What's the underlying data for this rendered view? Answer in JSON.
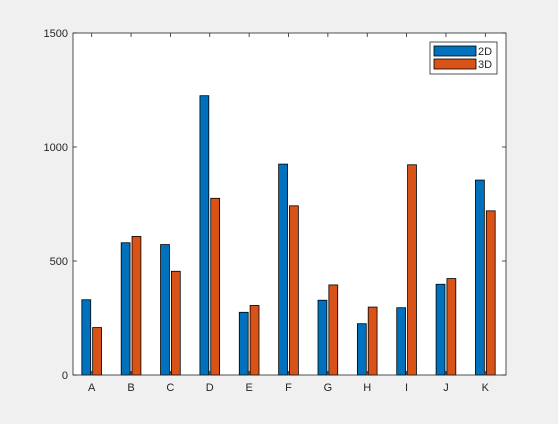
{
  "chart_data": {
    "type": "bar",
    "categories": [
      "A",
      "B",
      "C",
      "D",
      "E",
      "F",
      "G",
      "H",
      "I",
      "J",
      "K"
    ],
    "series": [
      {
        "name": "2D",
        "color": "#0072bd",
        "values": [
          330,
          580,
          572,
          1225,
          275,
          925,
          328,
          225,
          295,
          398,
          855
        ]
      },
      {
        "name": "3D",
        "color": "#d95319",
        "values": [
          208,
          608,
          455,
          775,
          305,
          742,
          395,
          298,
          922,
          423,
          720
        ]
      }
    ],
    "ylim": [
      0,
      1500
    ],
    "yticks": [
      0,
      500,
      1000,
      1500
    ],
    "ytick_labels": [
      "0",
      "500",
      "1000",
      "1500"
    ],
    "title": "",
    "xlabel": "",
    "ylabel": "",
    "grid": false,
    "legend_position": "top-right",
    "background_color": "#f0f0f0",
    "axes_color": "#ffffff"
  }
}
